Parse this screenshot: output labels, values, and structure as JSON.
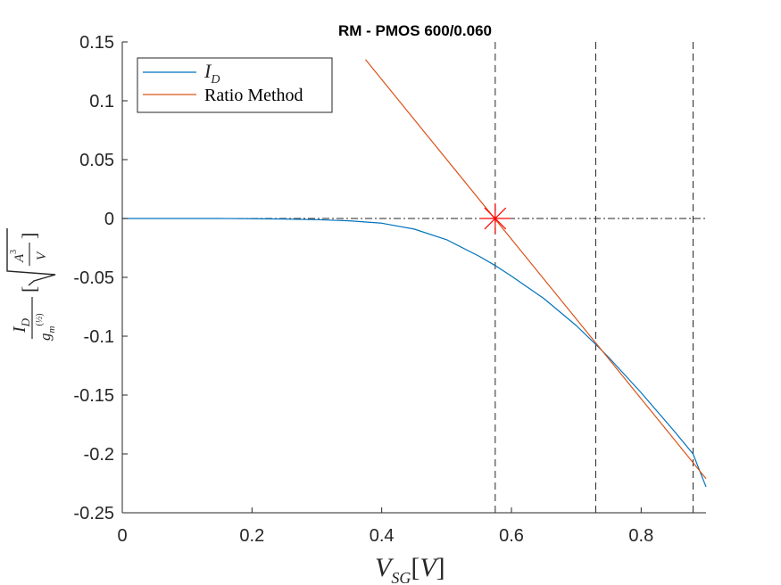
{
  "chart_data": {
    "type": "line",
    "title": "RM - PMOS 600/0.060",
    "xlabel": "V_SG[V]",
    "ylabel": "I_D / g_m^(1/2) [√(A³/V)]",
    "xlim": [
      0,
      0.9
    ],
    "ylim": [
      -0.25,
      0.15
    ],
    "xticks": [
      0,
      0.2,
      0.4,
      0.6,
      0.8
    ],
    "xtick_labels": [
      "0",
      "0.2",
      "0.4",
      "0.6",
      "0.8"
    ],
    "yticks": [
      0.15,
      0.1,
      0.05,
      0,
      -0.05,
      -0.1,
      -0.15,
      -0.2,
      -0.25
    ],
    "ytick_labels": [
      "0.15",
      "0.1",
      "0.05",
      "0",
      "-0.05",
      "-0.1",
      "-0.15",
      "-0.2",
      "-0.25"
    ],
    "legend_position": "top-left",
    "grid": false,
    "series": [
      {
        "name": "I_D",
        "color": "#0072bd",
        "x": [
          0,
          0.05,
          0.1,
          0.15,
          0.2,
          0.25,
          0.3,
          0.35,
          0.4,
          0.45,
          0.5,
          0.55,
          0.575,
          0.6,
          0.65,
          0.7,
          0.73,
          0.75,
          0.8,
          0.85,
          0.88,
          0.9
        ],
        "y": [
          0,
          0,
          0,
          0,
          -0.0002,
          -0.0005,
          -0.001,
          -0.002,
          -0.004,
          -0.009,
          -0.018,
          -0.032,
          -0.04,
          -0.049,
          -0.068,
          -0.091,
          -0.107,
          -0.118,
          -0.148,
          -0.18,
          -0.2,
          -0.228
        ]
      },
      {
        "name": "Ratio Method",
        "color": "#d95319",
        "x": [
          0.375,
          0.9
        ],
        "y": [
          0.135,
          -0.221
        ]
      }
    ],
    "reference_lines": {
      "horizontal_y": 0,
      "vertical_x": [
        0.575,
        0.73,
        0.88
      ]
    },
    "marker": {
      "x": 0.575,
      "y": 0,
      "symbol": "star",
      "color": "#ff0000"
    }
  }
}
